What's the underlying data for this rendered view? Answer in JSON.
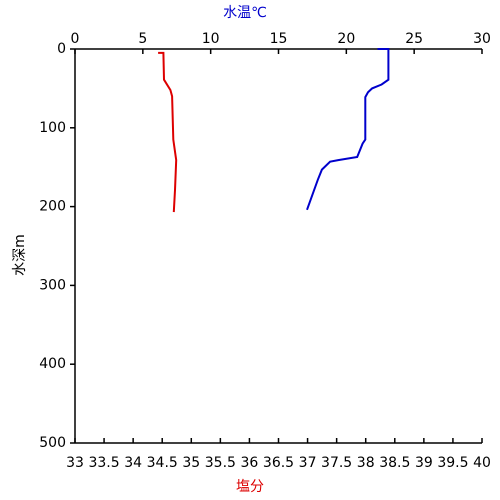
{
  "chart_data": {
    "type": "line",
    "xlabel": "塩分",
    "x2label": "水温℃",
    "ylabel": "水深m",
    "xlim": [
      33,
      40
    ],
    "xticks": [
      33,
      33.5,
      34,
      34.5,
      35,
      35.5,
      36,
      36.5,
      37,
      37.5,
      38,
      38.5,
      39,
      39.5,
      40
    ],
    "x2lim": [
      0,
      30
    ],
    "x2ticks": [
      0,
      5,
      10,
      15,
      20,
      25,
      30
    ],
    "ylim": [
      0,
      500
    ],
    "yticks": [
      0,
      100,
      200,
      300,
      400,
      500
    ],
    "y_reversed": true,
    "series": [
      {
        "color": "#0000cc",
        "axis": "x2",
        "x": [
          22.3,
          23.1,
          23.1,
          22.6,
          21.9,
          21.6,
          21.4,
          21.4,
          21.2,
          20.8,
          19.4,
          18.8,
          18.2,
          17.9,
          17.5,
          17.1
        ],
        "y": [
          0,
          0,
          39,
          45,
          50,
          55,
          61,
          115,
          120,
          137,
          141,
          143,
          153,
          166,
          185,
          204
        ]
      },
      {
        "color": "#dd0000",
        "axis": "x",
        "x": [
          34.43,
          34.52,
          34.53,
          34.64,
          34.67,
          34.69,
          34.74,
          34.72,
          34.7
        ],
        "y": [
          5,
          5,
          39,
          52,
          60,
          115,
          141,
          179,
          207
        ]
      }
    ]
  }
}
